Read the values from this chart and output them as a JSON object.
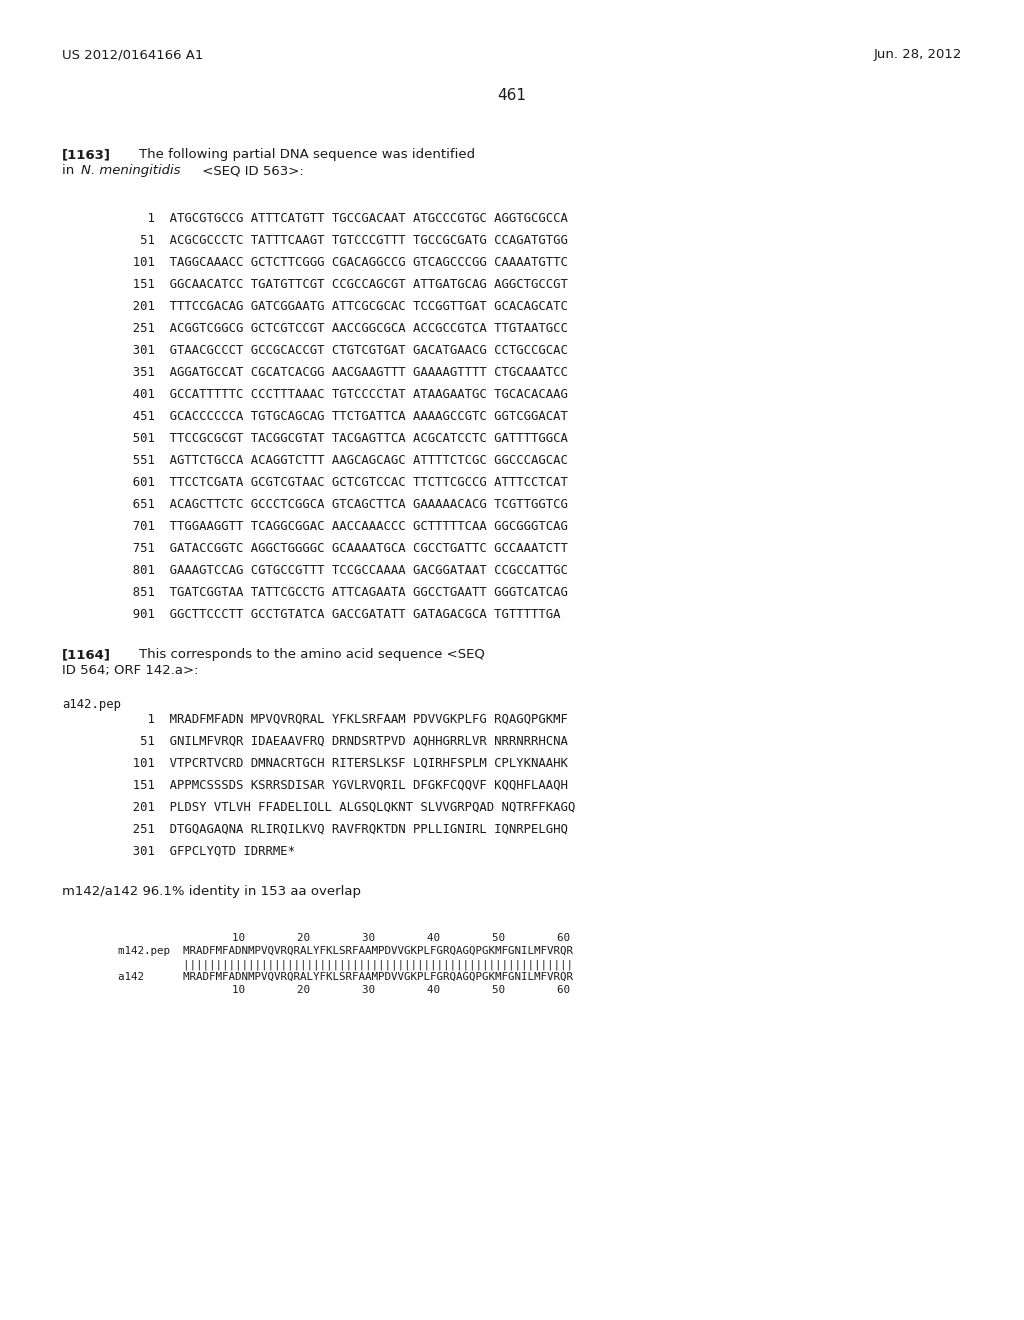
{
  "header_left": "US 2012/0164166 A1",
  "header_right": "Jun. 28, 2012",
  "page_number": "461",
  "background_color": "#ffffff",
  "dna_lines": [
    "    1  ATGCGTGCCG ATTTCATGTT TGCCGACAAT ATGCCCGTGC AGGTGCGCCA",
    "   51  ACGCGCCCTC TATTTCAAGT TGTCCCGTTT TGCCGCGATG CCAGATGTGG",
    "  101  TAGGCAAACC GCTCTTCGGG CGACAGGCCG GTCAGCCCGG CAAAATGTTC",
    "  151  GGCAACATCC TGATGTTCGT CCGCCAGCGT ATTGATGCAG AGGCTGCCGT",
    "  201  TTTCCGACAG GATCGGAATG ATTCGCGCAC TCCGGTTGAT GCACAGCATC",
    "  251  ACGGTCGGCG GCTCGTCCGT AACCGGCGCA ACCGCCGTCA TTGTAATGCC",
    "  301  GTAACGCCCT GCCGCACCGT CTGTCGTGAT GACATGAACG CCTGCCGCAC",
    "  351  AGGATGCCAT CGCATCACGG AACGAAGTTT GAAAAGTTTT CTGCAAATCC",
    "  401  GCCATTTTTC CCCTTTAAAC TGTCCCCTAT ATAAGAATGC TGCACACAAG",
    "  451  GCACCCCCCA TGTGCAGCAG TTCTGATTCA AAAAGCCGTC GGTCGGACAT",
    "  501  TTCCGCGCGT TACGGCGTAT TACGAGTTCA ACGCATCCTC GATTTTGGCA",
    "  551  AGTTCTGCCA ACAGGTCTTT AAGCAGCAGC ATTTTCTCGC GGCCCAGCAC",
    "  601  TTCCTCGATA GCGTCGTAAC GCTCGTCCAC TTCTTCGCCG ATTTCCTCAT",
    "  651  ACAGCTTCTC GCCCTCGGCA GTCAGCTTCA GAAAAACACG TCGTTGGTCG",
    "  701  TTGGAAGGTT TCAGGCGGAC AACCAAACCC GCTTTTTCAA GGCGGGTCAG",
    "  751  GATACCGGTC AGGCTGGGGC GCAAAATGCA CGCCTGATTC GCCAAATCTT",
    "  801  GAAAGTCCAG CGTGCCGTTT TCCGCCAAAA GACGGATAAT CCGCCATTGC",
    "  851  TGATCGGTAA TATTCGCCTG ATTCAGAATA GGCCTGAATT GGGTCATCAG",
    "  901  GGCTTCCCTT GCCTGTATCA GACCGATATT GATAGACGCA TGTTTTTGA"
  ],
  "protein_header": "a142.pep",
  "protein_lines": [
    "    1  MRADFMFADN MPVQVRQRAL YFKLSRFAAM PDVVGKPLFG RQAGQPGKMF",
    "   51  GNILMFVRQR IDAEAAVFRQ DRNDSRTPVD AQHHGRRLVR NRRNRRHCNA",
    "  101  VTPCRTVCRD DMNACRTGCH RITERSLKSF LQIRHFSPLM CPLYKNAAHK",
    "  151  APPMCSSSDS KSRRSDISAR YGVLRVQRIL DFGKFCQQVF KQQHFLAAQH",
    "  201  PLDSY VTLVH FFADELIOLL ALGSQLQKNT SLVVGRPQAD NQTRFFKAGQ",
    "  251  DTGQAGAQNA RLIRQILKVQ RAVFRQKTDN PPLLIGNIRL IQNRPELGHQ",
    "  301  GFPCLYQTD IDRRME*"
  ],
  "identity_line": "m142/a142 96.1% identity in 153 aa overlap",
  "align_scale": "         10        20        30        40        50        60",
  "align_m142_label": "m142.pep",
  "align_seq": "MRADFMFADNMPVQVRQRALYFKLSRFAAMPDVVGKPLFGRQAGQPGKMFGNILMFVRQR",
  "align_bars": "||||||||||||||||||||||||||||||||||||||||||||||||||||||||||||||||",
  "align_a142_label": "a142",
  "align_scale_bot": "        10        20        30        40        50        60"
}
